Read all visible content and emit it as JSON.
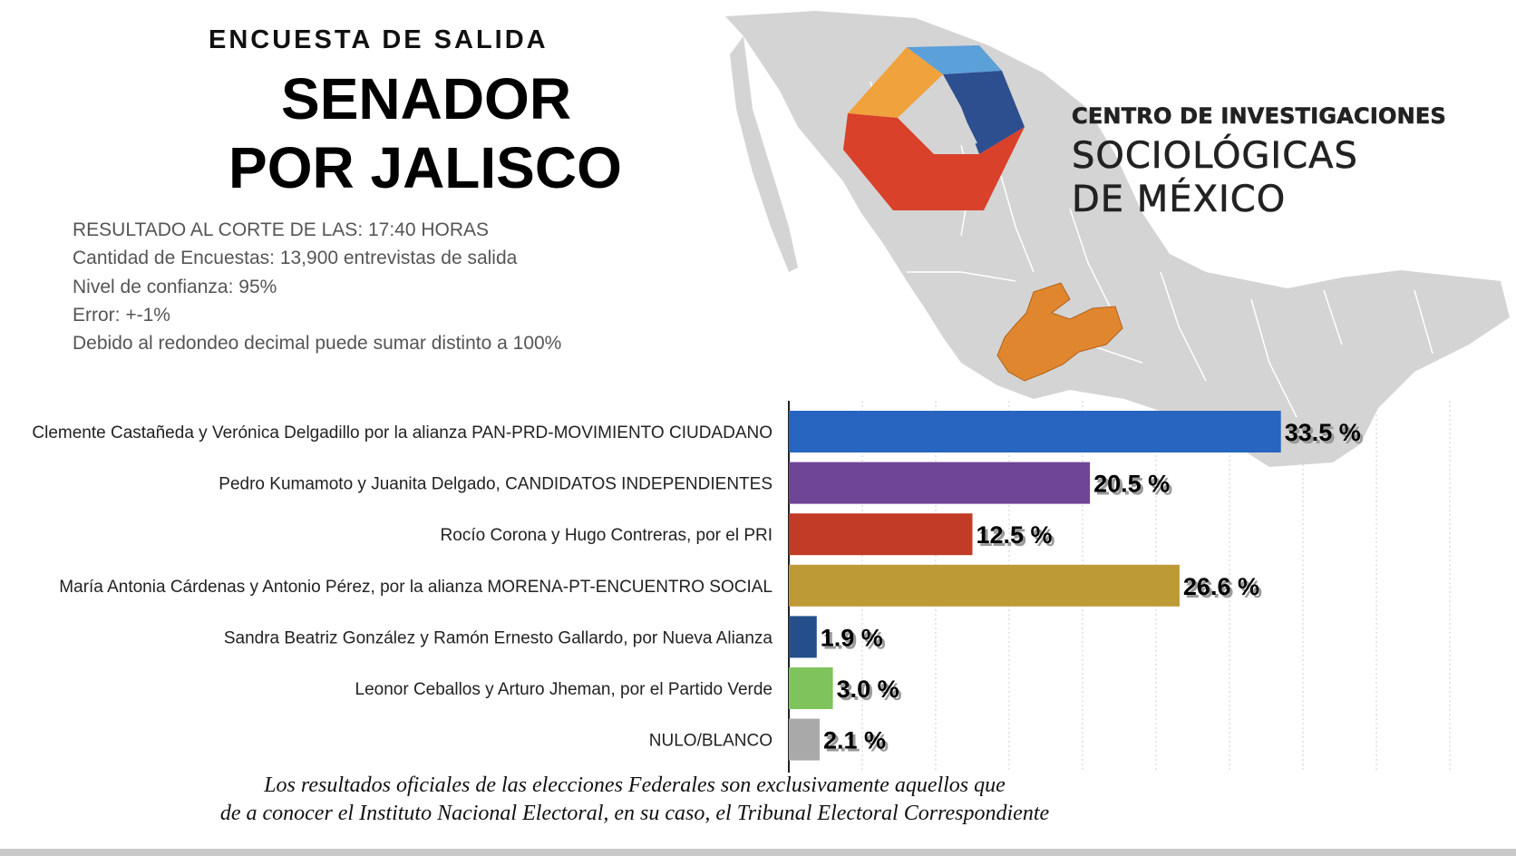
{
  "header": {
    "kicker": "ENCUESTA DE SALIDA",
    "title_line1": "SENADOR",
    "title_line2": "POR JALISCO"
  },
  "info": [
    "RESULTADO AL CORTE DE LAS: 17:40 HORAS",
    "Cantidad de Encuestas: 13,900 entrevistas de salida",
    "Nivel de confianza: 95%",
    "Error: +-1%",
    "Debido al redondeo decimal puede sumar distinto a 100%"
  ],
  "organization": {
    "line1": "CENTRO DE INVESTIGACIONES",
    "line2": "SOCIOLÓGICAS",
    "line3": "DE MÉXICO"
  },
  "footer": {
    "line1": "Los resultados oficiales de las elecciones Federales son exclusivamente aquellos que",
    "line2": "de a conocer el Instituto Nacional Electoral, en su caso, el Tribunal Electoral Correspondiente"
  },
  "colors": {
    "map_gray": "#d4d4d4",
    "jalisco_orange": "#e0862f",
    "logo_orange": "#f0a23c",
    "logo_blue": "#2d4f8f",
    "logo_light_blue": "#5ba0d8",
    "logo_red": "#d9412a"
  },
  "chart_data": {
    "type": "bar",
    "orientation": "horizontal",
    "categories": [
      "Clemente Castañeda y Verónica Delgadillo por la alianza PAN-PRD-MOVIMIENTO CIUDADANO",
      "Pedro Kumamoto y Juanita Delgado, CANDIDATOS INDEPENDIENTES",
      "Rocío Corona y Hugo Contreras, por el PRI",
      "María Antonia Cárdenas y Antonio Pérez, por la alianza MORENA-PT-ENCUENTRO SOCIAL",
      "Sandra Beatriz González y Ramón Ernesto Gallardo, por Nueva Alianza",
      "Leonor Ceballos y Arturo Jheman, por el Partido Verde",
      "NULO/BLANCO"
    ],
    "values": [
      33.5,
      20.5,
      12.5,
      26.6,
      1.9,
      3.0,
      2.1
    ],
    "value_labels": [
      "33.5 %",
      "20.5 %",
      "12.5 %",
      "26.6 %",
      "1.9 %",
      "3.0 %",
      "2.1 %"
    ],
    "colors": [
      "#2765c0",
      "#6e4597",
      "#c13b26",
      "#be9a37",
      "#244f8a",
      "#7ec35b",
      "#a9a9a9"
    ],
    "xlim": [
      0,
      45
    ],
    "grid": "vertical dotted",
    "legend": "none"
  }
}
